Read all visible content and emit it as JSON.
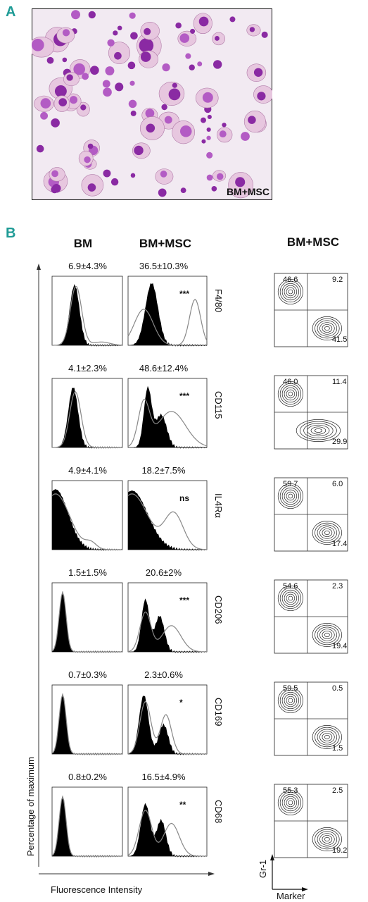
{
  "panel_a": {
    "letter": "A",
    "image_label": "BM+MSC",
    "colors": {
      "background": "#f2eaf2",
      "cell_pink": "#e7c7df",
      "nucleus": "#8a2aa3",
      "nucleus_light": "#b35bc4"
    }
  },
  "panel_b": {
    "letter": "B",
    "col_bm": "BM",
    "col_bm_msc": "BM+MSC",
    "col_contour": "BM+MSC",
    "y_axis_label": "Percentage of maximum",
    "x_axis_label": "Fluorescence Intensity",
    "contour_y_label": "Gr-1",
    "contour_x_label": "Marker",
    "rows": [
      {
        "marker": "F4/80",
        "bm_stat": "6.9±4.3%",
        "msc_stat": "36.5±10.3%",
        "sig": "***",
        "q_tl": "46.6",
        "q_tr": "9.2",
        "q_br": "41.5"
      },
      {
        "marker": "CD115",
        "bm_stat": "4.1±2.3%",
        "msc_stat": "48.6±12.4%",
        "sig": "***",
        "q_tl": "46.0",
        "q_tr": "11.4",
        "q_br": "29.9"
      },
      {
        "marker": "IL4Rα",
        "bm_stat": "4.9±4.1%",
        "msc_stat": "18.2±7.5%",
        "sig": "ns",
        "q_tl": "59.7",
        "q_tr": "6.0",
        "q_br": "17.4"
      },
      {
        "marker": "CD206",
        "bm_stat": "1.5±1.5%",
        "msc_stat": "20.6±2%",
        "sig": "***",
        "q_tl": "54.6",
        "q_tr": "2.3",
        "q_br": "19.4"
      },
      {
        "marker": "CD169",
        "bm_stat": "0.7±0.3%",
        "msc_stat": "2.3±0.6%",
        "sig": "*",
        "q_tl": "59.5",
        "q_tr": "0.5",
        "q_br": "1.5"
      },
      {
        "marker": "CD68",
        "bm_stat": "0.8±0.2%",
        "msc_stat": "16.5±4.9%",
        "sig": "**",
        "q_tl": "55.3",
        "q_tr": "2.5",
        "q_br": "19.2"
      }
    ]
  }
}
